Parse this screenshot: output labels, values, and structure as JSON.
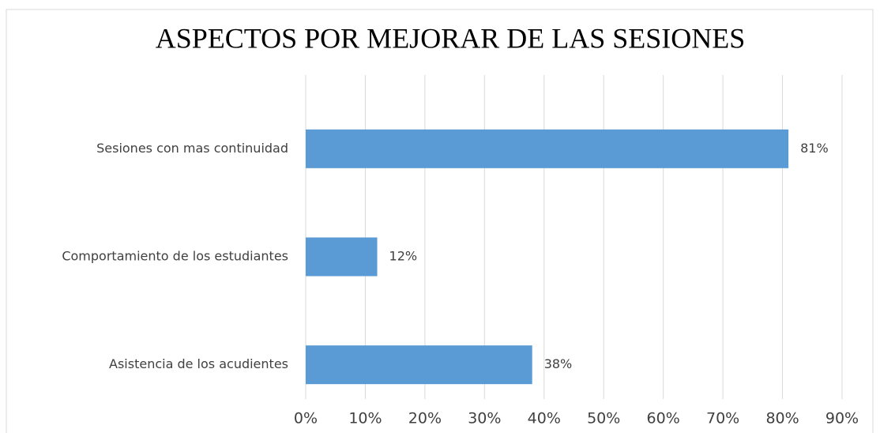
{
  "chart_data": {
    "type": "bar",
    "orientation": "horizontal",
    "title": "ASPECTOS POR MEJORAR DE LAS SESIONES",
    "categories": [
      "Sesiones con mas continuidad",
      "Comportamiento de los estudiantes",
      "Asistencia de los acudientes"
    ],
    "values": [
      81,
      12,
      38
    ],
    "value_labels": [
      "81%",
      "12%",
      "38%"
    ],
    "color": "#5b9bd5",
    "xlim": [
      0,
      90
    ],
    "xticks": [
      {
        "value": 0,
        "label": "0%"
      },
      {
        "value": 10,
        "label": "10%"
      },
      {
        "value": 20,
        "label": "20%"
      },
      {
        "value": 30,
        "label": "30%"
      },
      {
        "value": 40,
        "label": "40%"
      },
      {
        "value": 50,
        "label": "50%"
      },
      {
        "value": 60,
        "label": "60%"
      },
      {
        "value": 70,
        "label": "70%"
      },
      {
        "value": 80,
        "label": "80%"
      },
      {
        "value": 90,
        "label": "90%"
      }
    ],
    "grid": true
  }
}
